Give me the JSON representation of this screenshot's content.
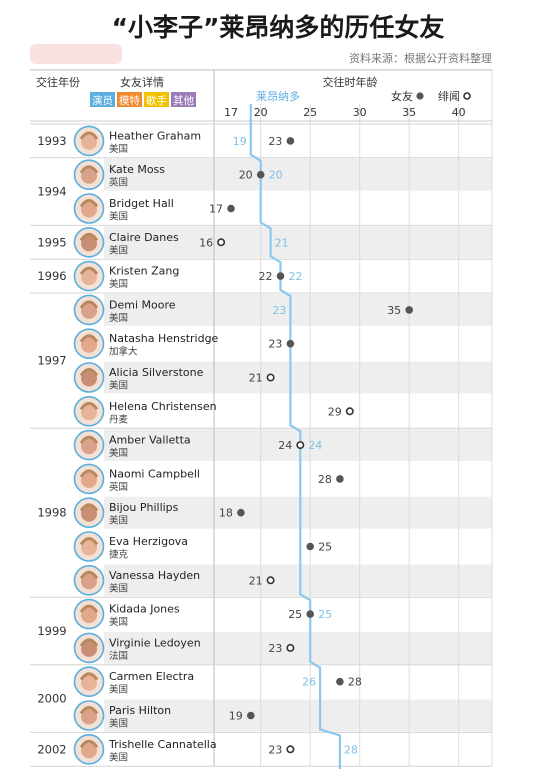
{
  "header": {
    "title": "“小李子”莱昂纳多的历任女友",
    "source": "资料来源：根据公开资料整理"
  },
  "columns": {
    "year": "交往年份",
    "detail": "女友详情",
    "age": "交往时年龄"
  },
  "categories": [
    {
      "label": "演员",
      "color": "#5aaee0"
    },
    {
      "label": "模特",
      "color": "#f08a2c"
    },
    {
      "label": "歌手",
      "color": "#f2c200"
    },
    {
      "label": "其他",
      "color": "#9b7bb8"
    }
  ],
  "legend": {
    "leo": "莱昂纳多",
    "girlfriend": "女友",
    "rumor": "绯闻"
  },
  "chart_data": {
    "type": "scatter",
    "title": "“小李子”莱昂纳多的历任女友",
    "xlabel": "交往时年龄",
    "x_ticks": [
      17,
      20,
      25,
      30,
      35,
      40
    ],
    "xlim": [
      15.5,
      40.5
    ],
    "series": [
      {
        "name": "莱昂纳多",
        "line_color": "#8cc8ee"
      },
      {
        "name": "女友",
        "marker": "filled",
        "color": "#555555"
      },
      {
        "name": "绯闻",
        "marker": "hollow",
        "color": "#333333"
      }
    ],
    "rows": [
      {
        "year": "1993",
        "name": "Heather Graham",
        "country": "美国",
        "age": 23,
        "leo_age": 19,
        "type": "女友"
      },
      {
        "year": "1994",
        "name": "Kate Moss",
        "country": "英国",
        "age": 20,
        "leo_age": 20,
        "type": "女友"
      },
      {
        "year": "",
        "name": "Bridget Hall",
        "country": "美国",
        "age": 17,
        "leo_age": null,
        "type": "女友"
      },
      {
        "year": "1995",
        "name": "Claire Danes",
        "country": "美国",
        "age": 16,
        "leo_age": 21,
        "type": "绯闻"
      },
      {
        "year": "1996",
        "name": "Kristen Zang",
        "country": "美国",
        "age": 22,
        "leo_age": 22,
        "type": "女友"
      },
      {
        "year": "1997",
        "name": "Demi Moore",
        "country": "美国",
        "age": 35,
        "leo_age": 23,
        "type": "女友"
      },
      {
        "year": "",
        "name": "Natasha Henstridge",
        "country": "加拿大",
        "age": 23,
        "leo_age": null,
        "type": "女友"
      },
      {
        "year": "",
        "name": "Alicia Silverstone",
        "country": "美国",
        "age": 21,
        "leo_age": null,
        "type": "绯闻"
      },
      {
        "year": "",
        "name": "Helena Christensen",
        "country": "丹麦",
        "age": 29,
        "leo_age": null,
        "type": "绯闻"
      },
      {
        "year": "1998",
        "name": "Amber Valletta",
        "country": "美国",
        "age": 24,
        "leo_age": 24,
        "type": "绯闻"
      },
      {
        "year": "",
        "name": "Naomi Campbell",
        "country": "英国",
        "age": 28,
        "leo_age": null,
        "type": "女友"
      },
      {
        "year": "",
        "name": "Bijou Phillips",
        "country": "美国",
        "age": 18,
        "leo_age": null,
        "type": "女友"
      },
      {
        "year": "",
        "name": "Eva Herzigova",
        "country": "捷克",
        "age": 25,
        "leo_age": null,
        "type": "女友"
      },
      {
        "year": "",
        "name": "Vanessa Hayden",
        "country": "美国",
        "age": 21,
        "leo_age": null,
        "type": "绯闻"
      },
      {
        "year": "1999",
        "name": "Kidada Jones",
        "country": "美国",
        "age": 25,
        "leo_age": 25,
        "type": "女友"
      },
      {
        "year": "",
        "name": "Virginie Ledoyen",
        "country": "法国",
        "age": 23,
        "leo_age": null,
        "type": "绯闻"
      },
      {
        "year": "2000",
        "name": "Carmen Electra",
        "country": "美国",
        "age": 28,
        "leo_age": 26,
        "type": "女友"
      },
      {
        "year": "",
        "name": "Paris Hilton",
        "country": "美国",
        "age": 19,
        "leo_age": null,
        "type": "女友"
      },
      {
        "year": "2002",
        "name": "Trishelle Cannatella",
        "country": "美国",
        "age": 23,
        "leo_age": 28,
        "type": "绯闻"
      }
    ],
    "year_groups": [
      {
        "year": "1993",
        "rows": [
          0,
          0
        ]
      },
      {
        "year": "1994",
        "rows": [
          1,
          2
        ]
      },
      {
        "year": "1995",
        "rows": [
          3,
          3
        ]
      },
      {
        "year": "1996",
        "rows": [
          4,
          4
        ]
      },
      {
        "year": "1997",
        "rows": [
          5,
          8
        ]
      },
      {
        "year": "1998",
        "rows": [
          9,
          13
        ]
      },
      {
        "year": "1999",
        "rows": [
          14,
          15
        ]
      },
      {
        "year": "2000",
        "rows": [
          16,
          17
        ]
      },
      {
        "year": "2002",
        "rows": [
          18,
          18
        ]
      }
    ]
  }
}
